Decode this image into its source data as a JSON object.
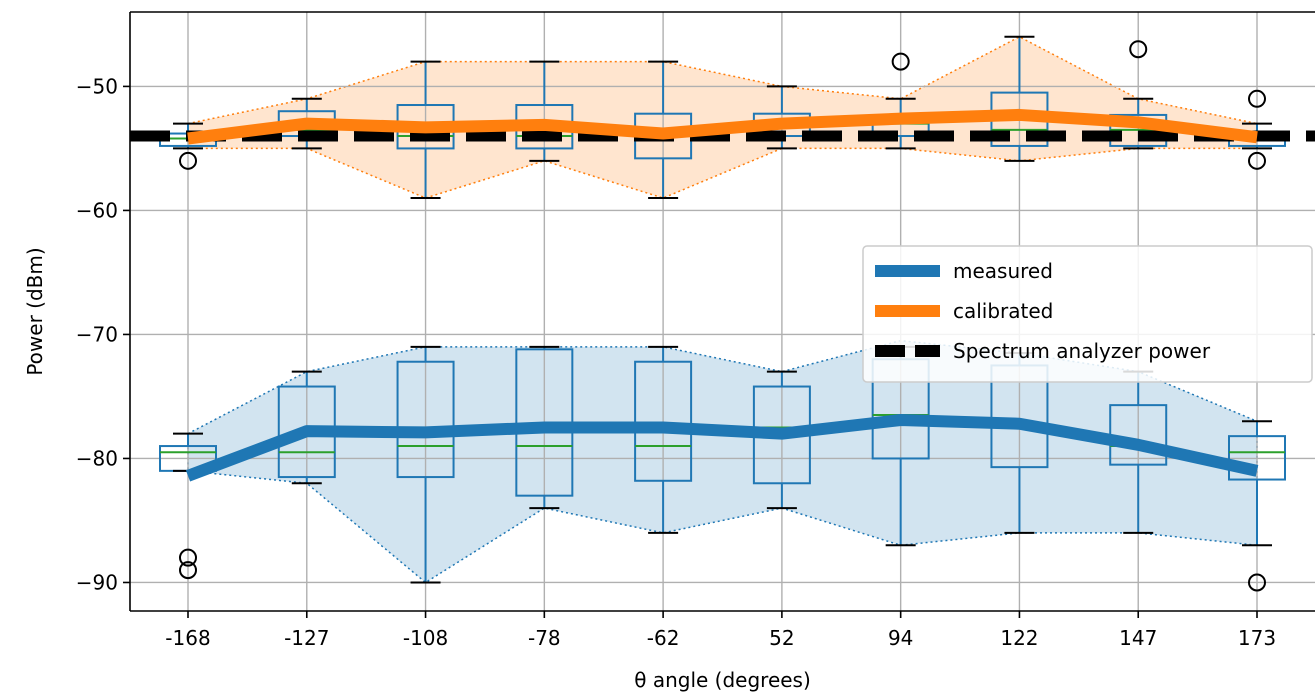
{
  "chart_data": {
    "type": "box",
    "title": "",
    "xlabel": "θ angle (degrees)",
    "ylabel": "Power (dBm)",
    "categories": [
      "-168",
      "-127",
      "-108",
      "-78",
      "-62",
      "52",
      "94",
      "122",
      "147",
      "173"
    ],
    "ylim": [
      -92.3,
      -44
    ],
    "yticks": [
      -50,
      -60,
      -70,
      -80,
      -90
    ],
    "ytick_labels": [
      "−50",
      "−60",
      "−70",
      "−80",
      "−90"
    ],
    "grid": true,
    "legend_position": "center-right",
    "reference_line": {
      "name": "Spectrum analyzer power",
      "value": -54,
      "color": "#000000",
      "style": "dashed"
    },
    "series": [
      {
        "name": "measured",
        "color": "#1f77b4",
        "fill_color": "#1f77b4",
        "mean": [
          -81.4,
          -77.8,
          -77.9,
          -77.5,
          -77.5,
          -78.0,
          -76.9,
          -77.2,
          -78.9,
          -81.0
        ],
        "band_upper": [
          -78,
          -73,
          -71,
          -71,
          -71,
          -73,
          -70.5,
          -71.5,
          -73,
          -77
        ],
        "band_lower": [
          -81,
          -82,
          -90,
          -84,
          -86,
          -84,
          -87,
          -86,
          -86,
          -87
        ],
        "boxes": [
          {
            "whislo": -81,
            "q1": -81,
            "med": -79.5,
            "q3": -79,
            "whishi": -78,
            "fliers": [
              -88,
              -89
            ]
          },
          {
            "whislo": -82,
            "q1": -81.5,
            "med": -79.5,
            "q3": -74.2,
            "whishi": -73,
            "fliers": []
          },
          {
            "whislo": -90,
            "q1": -81.5,
            "med": -79,
            "q3": -72.2,
            "whishi": -71,
            "fliers": []
          },
          {
            "whislo": -84,
            "q1": -83,
            "med": -79,
            "q3": -71.2,
            "whishi": -71,
            "fliers": []
          },
          {
            "whislo": -86,
            "q1": -81.8,
            "med": -79,
            "q3": -72.2,
            "whishi": -71,
            "fliers": []
          },
          {
            "whislo": -84,
            "q1": -82,
            "med": -77.5,
            "q3": -74.2,
            "whishi": -73,
            "fliers": []
          },
          {
            "whislo": -87,
            "q1": -80,
            "med": -76.5,
            "q3": -72,
            "whishi": -71,
            "fliers": []
          },
          {
            "whislo": -86,
            "q1": -80.7,
            "med": -77.5,
            "q3": -72.5,
            "whishi": -71.5,
            "fliers": []
          },
          {
            "whislo": -86,
            "q1": -80.5,
            "med": -79,
            "q3": -75.7,
            "whishi": -73,
            "fliers": []
          },
          {
            "whislo": -87,
            "q1": -81.7,
            "med": -79.5,
            "q3": -78.2,
            "whishi": -77,
            "fliers": [
              -90
            ]
          }
        ]
      },
      {
        "name": "calibrated",
        "color": "#ff7f0e",
        "fill_color": "#ff7f0e",
        "mean": [
          -54.2,
          -53.0,
          -53.3,
          -53.1,
          -53.8,
          -53.0,
          -52.6,
          -52.3,
          -52.9,
          -54.1
        ],
        "band_upper": [
          -53,
          -51,
          -48,
          -48,
          -48,
          -50,
          -51,
          -46,
          -51,
          -53
        ],
        "band_lower": [
          -55,
          -55,
          -59,
          -56,
          -59,
          -55,
          -55,
          -56,
          -55,
          -55
        ],
        "boxes": [
          {
            "whislo": -55,
            "q1": -54.8,
            "med": -54.2,
            "q3": -53.8,
            "whishi": -53,
            "fliers": [
              -56
            ]
          },
          {
            "whislo": -55,
            "q1": -54,
            "med": -53.5,
            "q3": -52,
            "whishi": -51,
            "fliers": []
          },
          {
            "whislo": -59,
            "q1": -55,
            "med": -54,
            "q3": -51.5,
            "whishi": -48,
            "fliers": []
          },
          {
            "whislo": -56,
            "q1": -55,
            "med": -54,
            "q3": -51.5,
            "whishi": -48,
            "fliers": []
          },
          {
            "whislo": -59,
            "q1": -55.8,
            "med": -54,
            "q3": -52.2,
            "whishi": -48,
            "fliers": []
          },
          {
            "whislo": -55,
            "q1": -54,
            "med": -53,
            "q3": -52.2,
            "whishi": -50,
            "fliers": []
          },
          {
            "whislo": -55,
            "q1": -54,
            "med": -53,
            "q3": -52.8,
            "whishi": -51,
            "fliers": [
              -48
            ]
          },
          {
            "whislo": -56,
            "q1": -54.8,
            "med": -53.5,
            "q3": -50.5,
            "whishi": -46,
            "fliers": []
          },
          {
            "whislo": -55,
            "q1": -54.8,
            "med": -53.5,
            "q3": -52.3,
            "whishi": -51,
            "fliers": [
              -47
            ]
          },
          {
            "whislo": -55,
            "q1": -54.8,
            "med": -54.2,
            "q3": -54,
            "whishi": -53,
            "fliers": [
              -51,
              -56
            ]
          }
        ]
      }
    ],
    "box_color": "#1f77b4",
    "median_color": "#2ca02c",
    "legend": [
      "measured",
      "calibrated",
      "Spectrum analyzer power"
    ]
  }
}
